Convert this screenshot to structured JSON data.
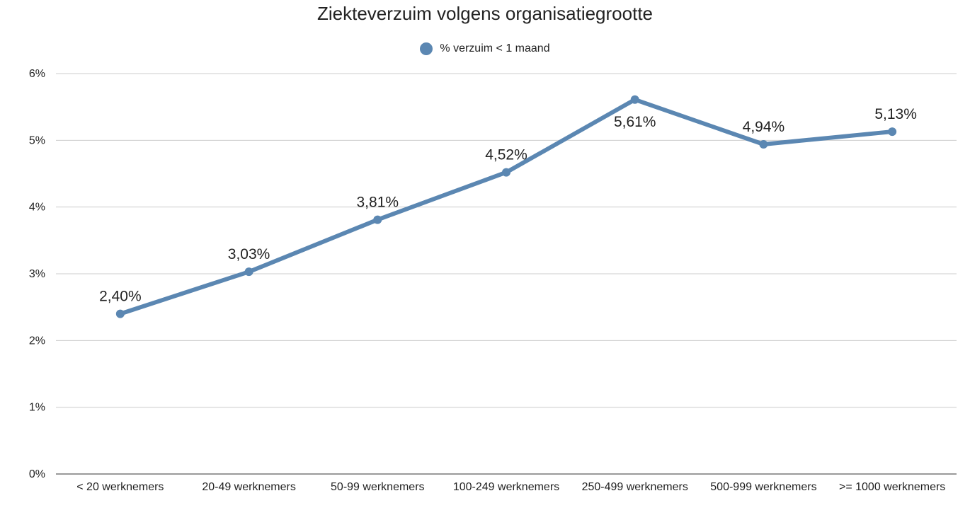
{
  "chart_data": {
    "type": "line",
    "title": "Ziekteverzuim volgens organisatiegrootte",
    "categories": [
      "< 20 werknemers",
      "20-49 werknemers",
      "50-99 werknemers",
      "100-249 werknemers",
      "250-499 werknemers",
      "500-999 werknemers",
      ">= 1000 werknemers"
    ],
    "series": [
      {
        "name": "% verzuim < 1 maand",
        "values": [
          2.4,
          3.03,
          3.81,
          4.52,
          5.61,
          4.94,
          5.13
        ],
        "labels": [
          "2,40%",
          "3,03%",
          "3,81%",
          "4,52%",
          "5,61%",
          "4,94%",
          "5,13%"
        ],
        "color": "#5b87b2"
      }
    ],
    "ylim": [
      0,
      6
    ],
    "yticks": [
      0,
      1,
      2,
      3,
      4,
      5,
      6
    ],
    "ytick_labels": [
      "0%",
      "1%",
      "2%",
      "3%",
      "4%",
      "5%",
      "6%"
    ],
    "grid": true,
    "legend_position": "top-center"
  }
}
